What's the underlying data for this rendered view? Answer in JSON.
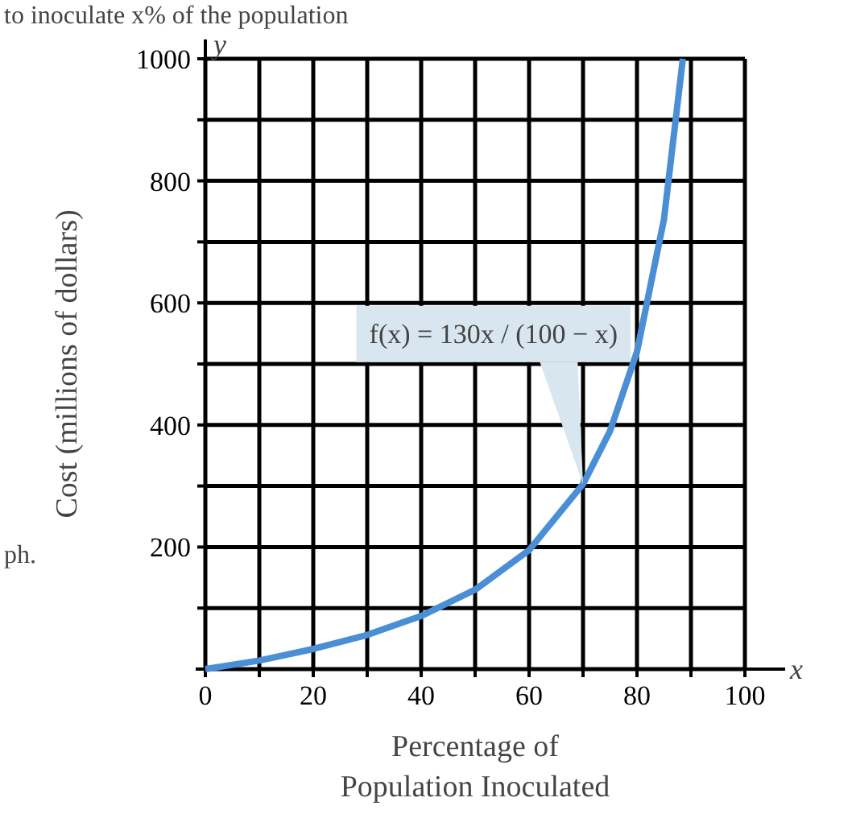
{
  "chart_data": {
    "type": "line",
    "xlabel": "Percentage of\nPopulation Inoculated",
    "ylabel": "Cost (millions of dollars)",
    "x": [
      0,
      10,
      20,
      30,
      40,
      50,
      60,
      70,
      75,
      80,
      85,
      88.5
    ],
    "series": [
      {
        "color": "#4a8fd6",
        "values": [
          0,
          14,
          33,
          56,
          87,
          130,
          195,
          303,
          390,
          520,
          737,
          1000
        ]
      }
    ],
    "xlim": [
      0,
      100
    ],
    "ylim": [
      0,
      1000
    ],
    "xticks": [
      0,
      {
        "value": 10,
        "label": null
      },
      20,
      {
        "value": 30,
        "label": null
      },
      40,
      {
        "value": 50,
        "label": null
      },
      60,
      {
        "value": 70,
        "label": null
      },
      80,
      {
        "value": 90,
        "label": null
      },
      100
    ],
    "yticks": [
      {
        "value": 0,
        "label": null
      },
      {
        "value": 100,
        "label": null
      },
      200,
      {
        "value": 300,
        "label": null
      },
      400,
      {
        "value": 500,
        "label": null
      },
      600,
      {
        "value": 700,
        "label": null
      },
      800,
      {
        "value": 900,
        "label": null
      },
      1000
    ],
    "grid": true,
    "marker": "none",
    "line_style": "solid",
    "annotations": [
      "to inoculate x% of the population",
      "ph.",
      "x",
      "y",
      {
        "text": "f(x) = 130x / (100 − x)",
        "x": 70,
        "y": 303
      }
    ]
  }
}
